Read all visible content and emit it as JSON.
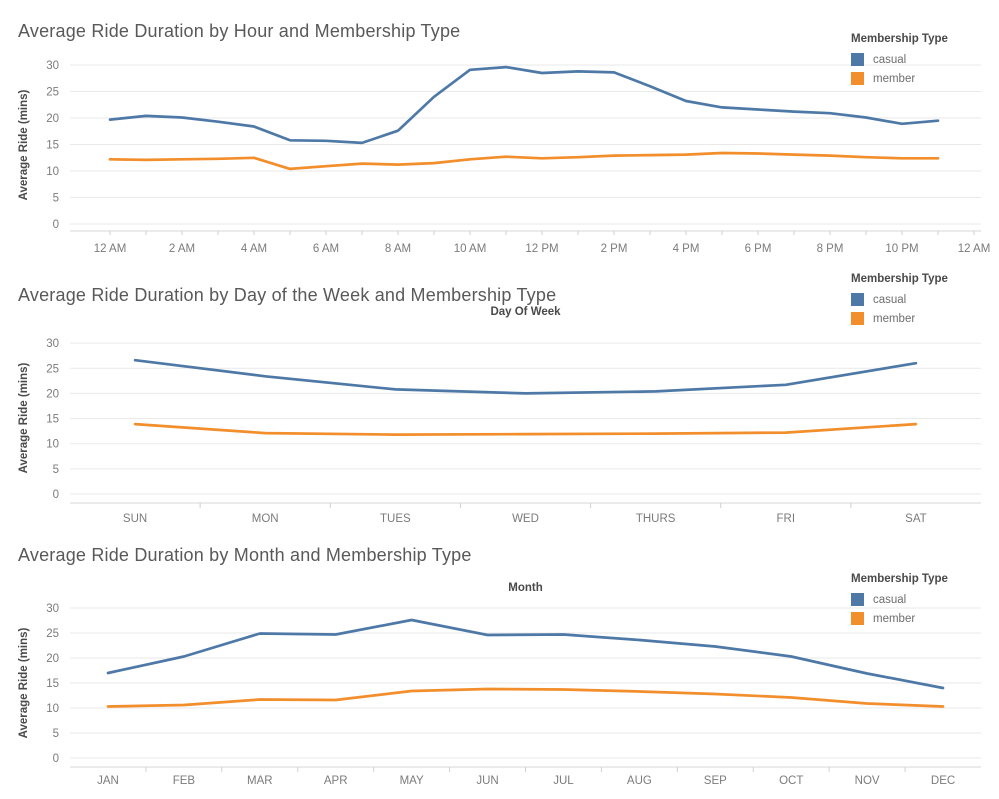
{
  "chart_data": [
    {
      "type": "line",
      "title": "Average Ride Duration by Hour and Membership Type",
      "xlabel": "",
      "ylabel": "Average Ride (mins)",
      "ylim": [
        0,
        30
      ],
      "yticks": [
        0,
        5,
        10,
        15,
        20,
        25,
        30
      ],
      "grid": "horizontal",
      "legend_title": "Membership Type",
      "legend_position": "top-right",
      "x_hours": [
        0,
        1,
        2,
        3,
        4,
        5,
        6,
        7,
        8,
        9,
        10,
        11,
        12,
        13,
        14,
        15,
        16,
        17,
        18,
        19,
        20,
        21,
        22,
        23
      ],
      "x_tick_labels": [
        {
          "h": 0,
          "label": "12 AM"
        },
        {
          "h": 2,
          "label": "2 AM"
        },
        {
          "h": 4,
          "label": "4 AM"
        },
        {
          "h": 6,
          "label": "6 AM"
        },
        {
          "h": 8,
          "label": "8 AM"
        },
        {
          "h": 10,
          "label": "10 AM"
        },
        {
          "h": 12,
          "label": "12 PM"
        },
        {
          "h": 14,
          "label": "2 PM"
        },
        {
          "h": 16,
          "label": "4 PM"
        },
        {
          "h": 18,
          "label": "6 PM"
        },
        {
          "h": 20,
          "label": "8 PM"
        },
        {
          "h": 22,
          "label": "10 PM"
        },
        {
          "h": 24,
          "label": "12 AM"
        }
      ],
      "series": [
        {
          "name": "casual",
          "color": "#4e79a7",
          "values": [
            19.7,
            20.4,
            20.1,
            19.3,
            18.4,
            15.8,
            15.7,
            15.3,
            17.6,
            24.0,
            29.1,
            29.6,
            28.5,
            28.8,
            28.6,
            26.0,
            23.2,
            22.0,
            21.6,
            21.2,
            20.9,
            20.1,
            18.9,
            19.5
          ]
        },
        {
          "name": "member",
          "color": "#f28e2b",
          "values": [
            12.2,
            12.1,
            12.2,
            12.3,
            12.5,
            10.4,
            10.9,
            11.4,
            11.2,
            11.5,
            12.2,
            12.7,
            12.4,
            12.6,
            12.9,
            13.0,
            13.1,
            13.4,
            13.3,
            13.1,
            12.9,
            12.6,
            12.4,
            12.4
          ]
        }
      ]
    },
    {
      "type": "line",
      "title": "Average Ride Duration by Day of the Week and Membership Type",
      "xlabel": "Day Of Week",
      "ylabel": "Average Ride (mins)",
      "ylim": [
        0,
        30
      ],
      "yticks": [
        0,
        5,
        10,
        15,
        20,
        25,
        30
      ],
      "grid": "horizontal",
      "legend_title": "Membership Type",
      "legend_position": "top-right",
      "categories": [
        "SUN",
        "MON",
        "TUES",
        "WED",
        "THURS",
        "FRI",
        "SAT"
      ],
      "series": [
        {
          "name": "casual",
          "color": "#4e79a7",
          "values": [
            26.6,
            23.4,
            20.8,
            20.0,
            20.4,
            21.7,
            26.0
          ]
        },
        {
          "name": "member",
          "color": "#f28e2b",
          "values": [
            13.9,
            12.1,
            11.8,
            11.9,
            12.0,
            12.2,
            13.9
          ]
        }
      ]
    },
    {
      "type": "line",
      "title": "Average Ride Duration by Month and Membership Type",
      "xlabel": "Month",
      "ylabel": "Average Ride (mins)",
      "ylim": [
        0,
        30
      ],
      "yticks": [
        0,
        5,
        10,
        15,
        20,
        25,
        30
      ],
      "grid": "horizontal",
      "legend_title": "Membership Type",
      "legend_position": "top-right",
      "categories": [
        "JAN",
        "FEB",
        "MAR",
        "APR",
        "MAY",
        "JUN",
        "JUL",
        "AUG",
        "SEP",
        "OCT",
        "NOV",
        "DEC"
      ],
      "series": [
        {
          "name": "casual",
          "color": "#4e79a7",
          "values": [
            17.0,
            20.3,
            24.9,
            24.7,
            27.6,
            24.6,
            24.7,
            23.6,
            22.3,
            20.3,
            16.9,
            14.0
          ]
        },
        {
          "name": "member",
          "color": "#f28e2b",
          "values": [
            10.3,
            10.6,
            11.7,
            11.6,
            13.4,
            13.8,
            13.7,
            13.3,
            12.8,
            12.1,
            10.9,
            10.3
          ]
        }
      ]
    }
  ]
}
